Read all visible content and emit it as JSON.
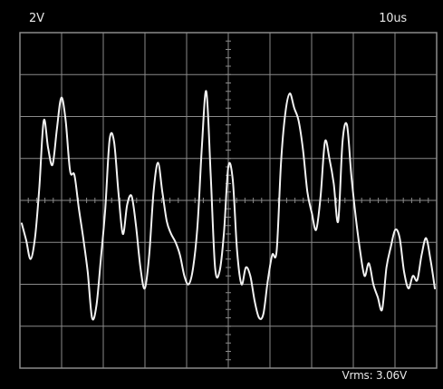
{
  "scope": {
    "volts_per_div": "2V",
    "time_per_div": "10us",
    "measurement": "Vrms: 3.06V"
  },
  "display": {
    "grid_divisions": {
      "x": 10,
      "y": 8
    },
    "grid_color": "#8a8a8a",
    "trace_color": "#f2f2f2",
    "background": "#000000"
  },
  "trace_values": [
    -0.55,
    -0.95,
    -1.4,
    -0.9,
    0.3,
    1.9,
    1.25,
    0.85,
    1.7,
    2.45,
    1.9,
    0.7,
    0.6,
    -0.2,
    -0.9,
    -1.7,
    -2.8,
    -2.5,
    -1.4,
    -0.2,
    1.45,
    1.4,
    0.2,
    -0.8,
    -0.1,
    0.1,
    -0.6,
    -1.6,
    -2.1,
    -1.3,
    0.2,
    0.9,
    0.2,
    -0.5,
    -0.8,
    -1.0,
    -1.3,
    -1.8,
    -2.0,
    -1.6,
    -0.6,
    1.3,
    2.6,
    0.6,
    -1.6,
    -1.7,
    -0.8,
    0.8,
    0.5,
    -1.2,
    -2.0,
    -1.6,
    -1.8,
    -2.4,
    -2.8,
    -2.7,
    -1.9,
    -1.3,
    -1.2,
    0.9,
    2.1,
    2.55,
    2.2,
    1.9,
    1.2,
    0.2,
    -0.3,
    -0.7,
    0.1,
    1.4,
    1.0,
    0.4,
    -0.5,
    1.4,
    1.8,
    0.6,
    -0.4,
    -1.2,
    -1.8,
    -1.5,
    -2.0,
    -2.3,
    -2.6,
    -1.6,
    -1.1,
    -0.7,
    -0.9,
    -1.7,
    -2.1,
    -1.8,
    -1.9,
    -1.3,
    -0.9,
    -1.4,
    -2.1
  ]
}
